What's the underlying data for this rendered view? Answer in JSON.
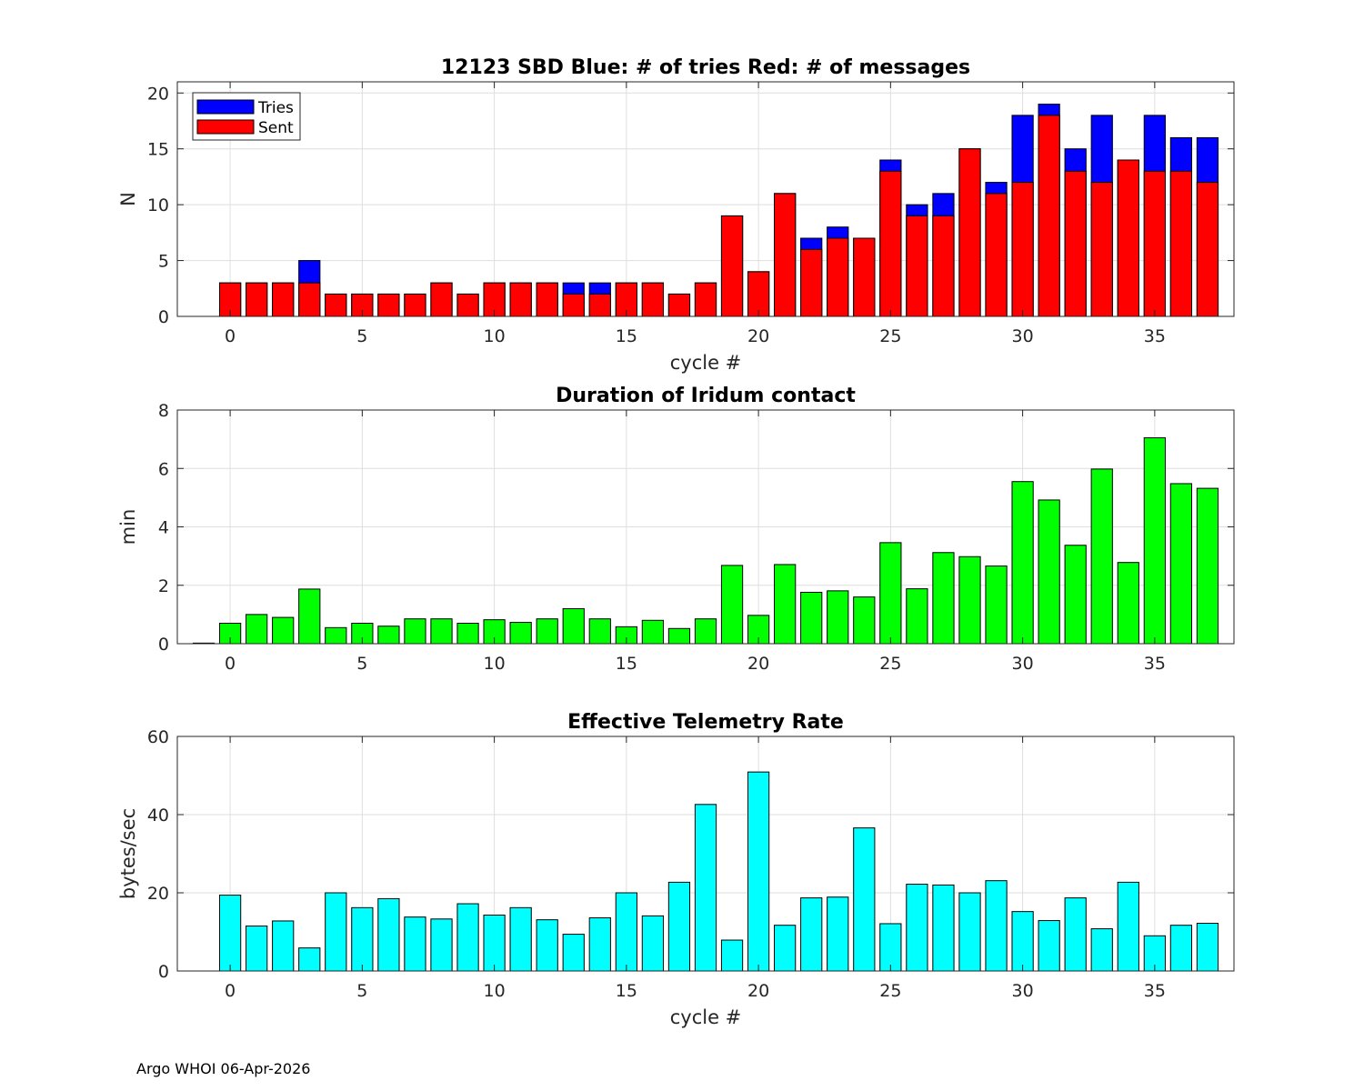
{
  "footer": "Argo WHOI 06-Apr-2026",
  "chart_data": [
    {
      "type": "bar",
      "stacked_overlay": true,
      "title": "12123 SBD  Blue: # of tries   Red: # of messages",
      "xlabel": "cycle #",
      "ylabel": "N",
      "xlim": [
        -2,
        38
      ],
      "ylim": [
        0,
        21
      ],
      "xticks": [
        0,
        5,
        10,
        15,
        20,
        25,
        30,
        35
      ],
      "yticks": [
        0,
        5,
        10,
        15,
        20
      ],
      "grid": true,
      "legend": {
        "position": "top-left",
        "entries": [
          "Tries",
          "Sent"
        ]
      },
      "x": [
        0,
        1,
        2,
        3,
        4,
        5,
        6,
        7,
        8,
        9,
        10,
        11,
        12,
        13,
        14,
        15,
        16,
        17,
        18,
        19,
        20,
        21,
        22,
        23,
        24,
        25,
        26,
        27,
        28,
        29,
        30,
        31,
        32,
        33,
        34,
        35,
        36,
        37
      ],
      "series": [
        {
          "name": "Tries",
          "color": "#0000ff",
          "values": [
            3,
            3,
            3,
            5,
            2,
            2,
            2,
            2,
            3,
            2,
            3,
            3,
            3,
            3,
            3,
            3,
            3,
            2,
            3,
            9,
            4,
            11,
            7,
            8,
            7,
            14,
            10,
            11,
            15,
            12,
            18,
            19,
            15,
            18,
            14,
            18,
            16,
            16
          ]
        },
        {
          "name": "Sent",
          "color": "#ff0000",
          "values": [
            3,
            3,
            3,
            3,
            2,
            2,
            2,
            2,
            3,
            2,
            3,
            3,
            3,
            2,
            2,
            3,
            3,
            2,
            3,
            9,
            4,
            11,
            6,
            7,
            7,
            13,
            9,
            9,
            15,
            11,
            12,
            18,
            13,
            12,
            14,
            13,
            13,
            12
          ]
        }
      ]
    },
    {
      "type": "bar",
      "title": "Duration of Iridum contact",
      "xlabel": "",
      "ylabel": "min",
      "xlim": [
        -2,
        38
      ],
      "ylim": [
        0,
        8
      ],
      "xticks": [
        0,
        5,
        10,
        15,
        20,
        25,
        30,
        35
      ],
      "yticks": [
        0,
        2,
        4,
        6,
        8
      ],
      "grid": true,
      "x": [
        -1,
        0,
        1,
        2,
        3,
        4,
        5,
        6,
        7,
        8,
        9,
        10,
        11,
        12,
        13,
        14,
        15,
        16,
        17,
        18,
        19,
        20,
        21,
        22,
        23,
        24,
        25,
        26,
        27,
        28,
        29,
        30,
        31,
        32,
        33,
        34,
        35,
        36,
        37
      ],
      "series": [
        {
          "name": "Duration",
          "color": "#00ff00",
          "values": [
            0.02,
            0.7,
            1.0,
            0.9,
            1.87,
            0.55,
            0.7,
            0.6,
            0.85,
            0.85,
            0.7,
            0.82,
            0.73,
            0.85,
            1.2,
            0.85,
            0.58,
            0.8,
            0.52,
            0.85,
            2.68,
            0.97,
            2.71,
            1.76,
            1.81,
            1.6,
            3.46,
            1.88,
            3.12,
            2.98,
            2.66,
            5.55,
            4.92,
            3.37,
            5.98,
            2.78,
            7.05,
            5.48,
            5.32
          ]
        }
      ]
    },
    {
      "type": "bar",
      "title": "Effective Telemetry Rate",
      "xlabel": "cycle #",
      "ylabel": "bytes/sec",
      "xlim": [
        -2,
        38
      ],
      "ylim": [
        0,
        60
      ],
      "xticks": [
        0,
        5,
        10,
        15,
        20,
        25,
        30,
        35
      ],
      "yticks": [
        0,
        20,
        40,
        60
      ],
      "grid": true,
      "x": [
        0,
        1,
        2,
        3,
        4,
        5,
        6,
        7,
        8,
        9,
        10,
        11,
        12,
        13,
        14,
        15,
        16,
        17,
        18,
        19,
        20,
        21,
        22,
        23,
        24,
        25,
        26,
        27,
        28,
        29,
        30,
        31,
        32,
        33,
        34,
        35,
        36,
        37
      ],
      "series": [
        {
          "name": "Rate",
          "color": "#00ffff",
          "values": [
            19.4,
            11.5,
            12.8,
            5.9,
            20.0,
            16.2,
            18.5,
            13.8,
            13.3,
            17.2,
            14.3,
            16.2,
            13.1,
            9.4,
            13.6,
            20.0,
            14.1,
            22.7,
            42.6,
            7.9,
            50.9,
            11.7,
            18.7,
            18.9,
            36.6,
            12.1,
            22.2,
            22.0,
            20.0,
            23.1,
            15.2,
            12.9,
            18.7,
            10.8,
            22.7,
            9.0,
            11.7,
            12.2
          ]
        }
      ]
    }
  ]
}
